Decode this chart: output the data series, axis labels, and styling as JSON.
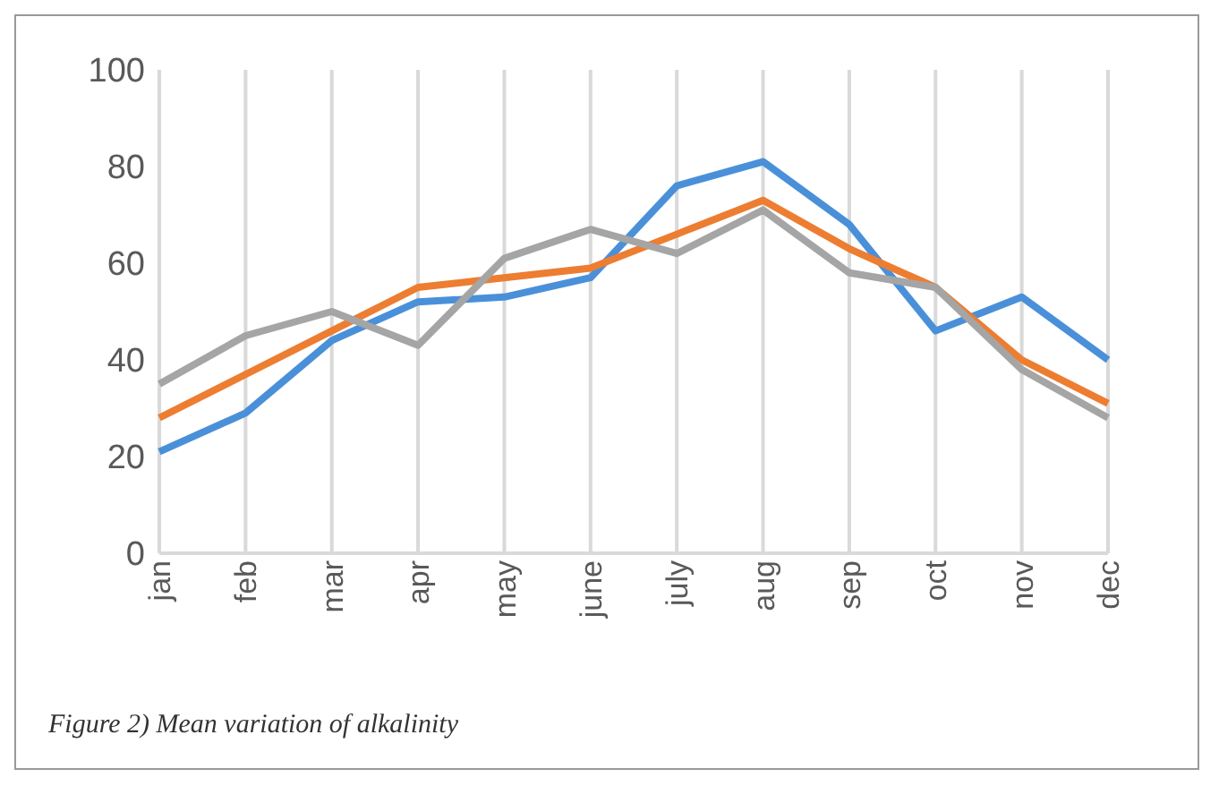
{
  "chart_data": {
    "type": "line",
    "categories": [
      "jan",
      "feb",
      "mar",
      "apr",
      "may",
      "june",
      "july",
      "aug",
      "sep",
      "oct",
      "nov",
      "dec"
    ],
    "series": [
      {
        "color": "#4a90d9",
        "values": [
          21,
          29,
          44,
          52,
          53,
          57,
          76,
          81,
          68,
          46,
          53,
          40
        ]
      },
      {
        "color": "#ed7d31",
        "values": [
          28,
          37,
          46,
          55,
          57,
          59,
          66,
          73,
          63,
          55,
          40,
          31
        ]
      },
      {
        "color": "#a5a5a5",
        "values": [
          35,
          45,
          50,
          43,
          61,
          67,
          62,
          71,
          58,
          55,
          38,
          28
        ]
      }
    ],
    "ylim": [
      0,
      100
    ],
    "yticks": [
      0,
      20,
      40,
      60,
      80,
      100
    ],
    "grid": "x",
    "legend": false,
    "marker": "none",
    "line_style": "solid",
    "annotations": [
      "Figure 2) Mean variation of alkalinity"
    ]
  }
}
